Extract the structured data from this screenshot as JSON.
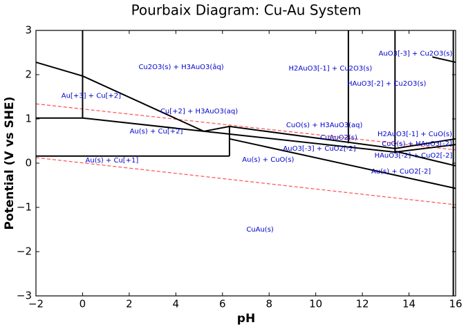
{
  "chart_data": {
    "type": "pourbaix",
    "title": "Pourbaix Diagram: Cu-Au System",
    "xlabel": "pH",
    "ylabel": "Potential (V vs SHE)",
    "xlim": [
      -2,
      16
    ],
    "ylim": [
      -3,
      3
    ],
    "xticks": [
      {
        "value": -2,
        "label": "−2"
      },
      0,
      2,
      4,
      6,
      8,
      10,
      12,
      14,
      16
    ],
    "yticks": [
      {
        "value": -3,
        "label": "−3"
      },
      {
        "value": -2,
        "label": "−2"
      },
      {
        "value": -1,
        "label": "−1"
      },
      0,
      1,
      2,
      3
    ],
    "boundary_color": "#000000",
    "boundaries": [
      {
        "x": [
          0,
          0
        ],
        "y": [
          3,
          1.02
        ]
      },
      {
        "x": [
          -2,
          0,
          5.2
        ],
        "y": [
          2.28,
          1.97,
          0.72
        ]
      },
      {
        "x": [
          -2,
          0,
          5.2
        ],
        "y": [
          1.02,
          1.02,
          0.72
        ]
      },
      {
        "x": [
          5.2,
          6.3,
          13.4,
          16
        ],
        "y": [
          0.72,
          0.83,
          0.33,
          0.55
        ]
      },
      {
        "x": [
          5.2,
          13.4,
          16
        ],
        "y": [
          0.72,
          0.25,
          0.42
        ]
      },
      {
        "x": [
          6.3,
          6.3
        ],
        "y": [
          0.83,
          0.16
        ]
      },
      {
        "x": [
          -2,
          6.3
        ],
        "y": [
          0.16,
          0.16
        ]
      },
      {
        "x": [
          6.3,
          13.4,
          16
        ],
        "y": [
          0.55,
          -0.27,
          -0.57
        ]
      },
      {
        "x": [
          13.4,
          16
        ],
        "y": [
          0.27,
          -0.06
        ]
      },
      {
        "x": [
          11.4,
          11.4
        ],
        "y": [
          3,
          0.45
        ]
      },
      {
        "x": [
          13.4,
          13.4
        ],
        "y": [
          3,
          0.22
        ]
      },
      {
        "x": [
          15.9,
          15.9
        ],
        "y": [
          3,
          -3
        ]
      },
      {
        "x": [
          15,
          16
        ],
        "y": [
          2.4,
          2.28
        ]
      }
    ],
    "water_lines": {
      "color": "#ff4d4d",
      "lines": [
        {
          "x": [
            -2,
            16
          ],
          "y": [
            1.34,
            0.3
          ]
        },
        {
          "x": [
            -2,
            16
          ],
          "y": [
            0.125,
            -0.94
          ]
        }
      ]
    },
    "label_color": "#0000cc",
    "regions": [
      {
        "label": "Cu2O3(s) + H3AuO3(âq)",
        "x": 4.23,
        "y": 2.17
      },
      {
        "label": "H2AuO3[-1] + Cu2O3(s)",
        "x": 10.63,
        "y": 2.14
      },
      {
        "label": "AuO3[-3] + Cu2O3(s)",
        "x": 14.28,
        "y": 2.48
      },
      {
        "label": "HAuO3[-2] + Cu2O3(s)",
        "x": 13.04,
        "y": 1.8
      },
      {
        "label": "Au[+3] + Cu[+2]",
        "x": 0.37,
        "y": 1.52
      },
      {
        "label": "Cu[+2] + H3AuO3(aq)",
        "x": 5.0,
        "y": 1.17
      },
      {
        "label": "CuO(s) + H3AuO3(aq)",
        "x": 10.37,
        "y": 0.86
      },
      {
        "label": "Au(s) + Cu[+2]",
        "x": 3.16,
        "y": 0.72
      },
      {
        "label": "H2AuO3[-1] + CuO(s)",
        "x": 14.25,
        "y": 0.66
      },
      {
        "label": "CuAuO2(s)",
        "x": 10.99,
        "y": 0.58
      },
      {
        "label": "CuO(s) + HAuO3[-2]",
        "x": 14.34,
        "y": 0.44
      },
      {
        "label": "AuO3[-3] + CuO2[-2]",
        "x": 10.16,
        "y": 0.33
      },
      {
        "label": "HAuO3[-2] + CuO2[-2]",
        "x": 14.19,
        "y": 0.17
      },
      {
        "label": "Au(s) + Cu[+1]",
        "x": 1.26,
        "y": 0.06
      },
      {
        "label": "Au(s) + CuO(s)",
        "x": 7.96,
        "y": 0.08
      },
      {
        "label": "Au(s) + CuO2[-2]",
        "x": 13.66,
        "y": -0.19
      },
      {
        "label": "CuAu(s)",
        "x": 7.61,
        "y": -1.5
      }
    ]
  }
}
